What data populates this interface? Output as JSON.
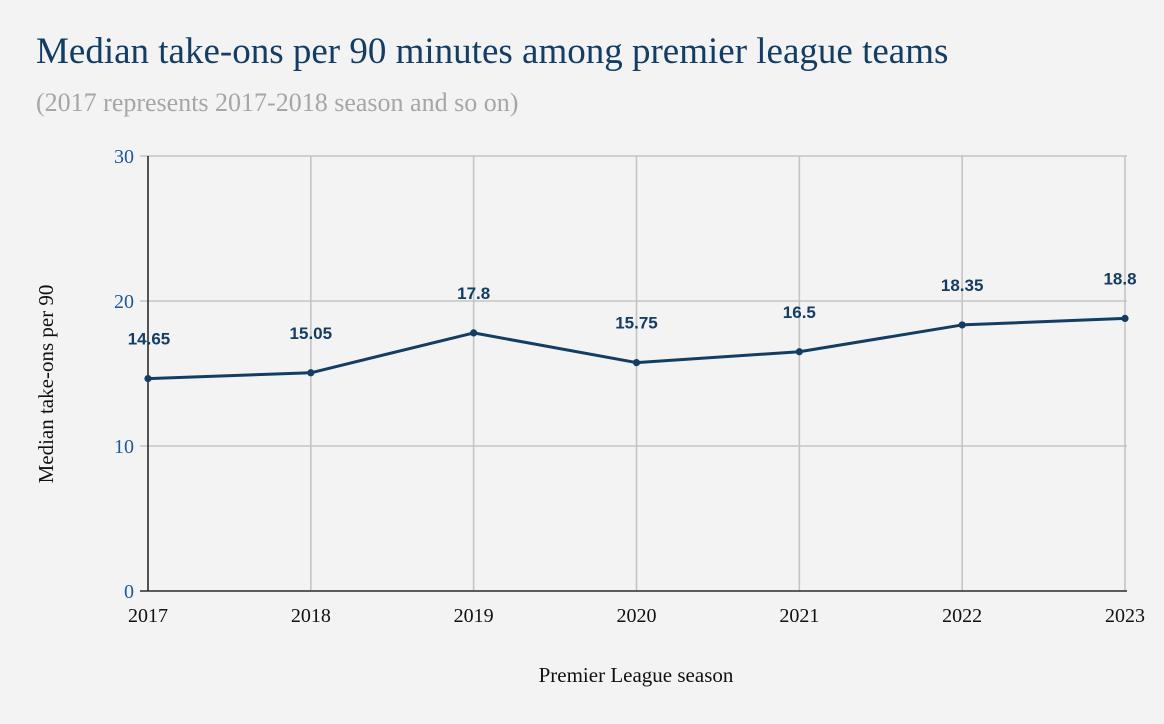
{
  "chart_data": {
    "type": "line",
    "title": "Median take-ons per 90 minutes among premier league teams",
    "subtitle": "(2017 represents 2017-2018 season and so on)",
    "xlabel": "Premier League season",
    "ylabel": "Median take-ons per 90",
    "x": [
      "2017",
      "2018",
      "2019",
      "2020",
      "2021",
      "2022",
      "2023"
    ],
    "values": [
      14.65,
      15.05,
      17.8,
      15.75,
      16.5,
      18.35,
      18.8
    ],
    "data_labels": [
      "14.65",
      "15.05",
      "17.8",
      "15.75",
      "16.5",
      "18.35",
      "18.8"
    ],
    "ylim": [
      0,
      30
    ],
    "yticks": [
      "0",
      "10",
      "20",
      "30"
    ],
    "grid": true,
    "legend": "none",
    "colors": {
      "line": "#143d63",
      "ytick": "#1a5a96",
      "grid": "#c4c4c4"
    }
  }
}
